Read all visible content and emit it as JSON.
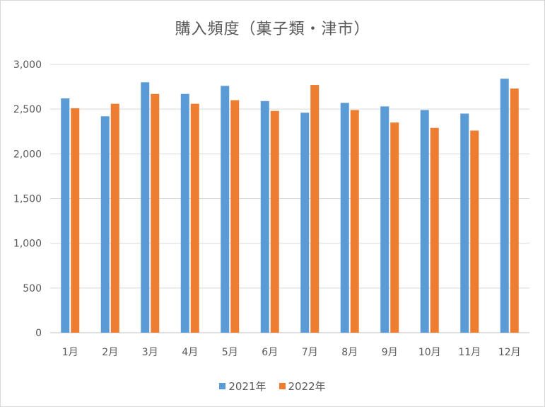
{
  "chart_data": {
    "type": "bar",
    "title": "購入頻度（菓子類・津市）",
    "categories": [
      "1月",
      "2月",
      "3月",
      "4月",
      "5月",
      "6月",
      "7月",
      "8月",
      "9月",
      "10月",
      "11月",
      "12月"
    ],
    "series": [
      {
        "name": "2021年",
        "color": "#5b9bd5",
        "values": [
          2620,
          2420,
          2800,
          2670,
          2760,
          2590,
          2460,
          2570,
          2530,
          2490,
          2450,
          2840
        ]
      },
      {
        "name": "2022年",
        "color": "#ed7d31",
        "values": [
          2510,
          2560,
          2670,
          2560,
          2600,
          2480,
          2770,
          2490,
          2350,
          2290,
          2260,
          2730
        ]
      }
    ],
    "y_ticks": [
      "0",
      "500",
      "1,000",
      "1,500",
      "2,000",
      "2,500",
      "3,000"
    ],
    "ylim": [
      0,
      3000
    ],
    "grid": true,
    "legend_position": "bottom"
  }
}
